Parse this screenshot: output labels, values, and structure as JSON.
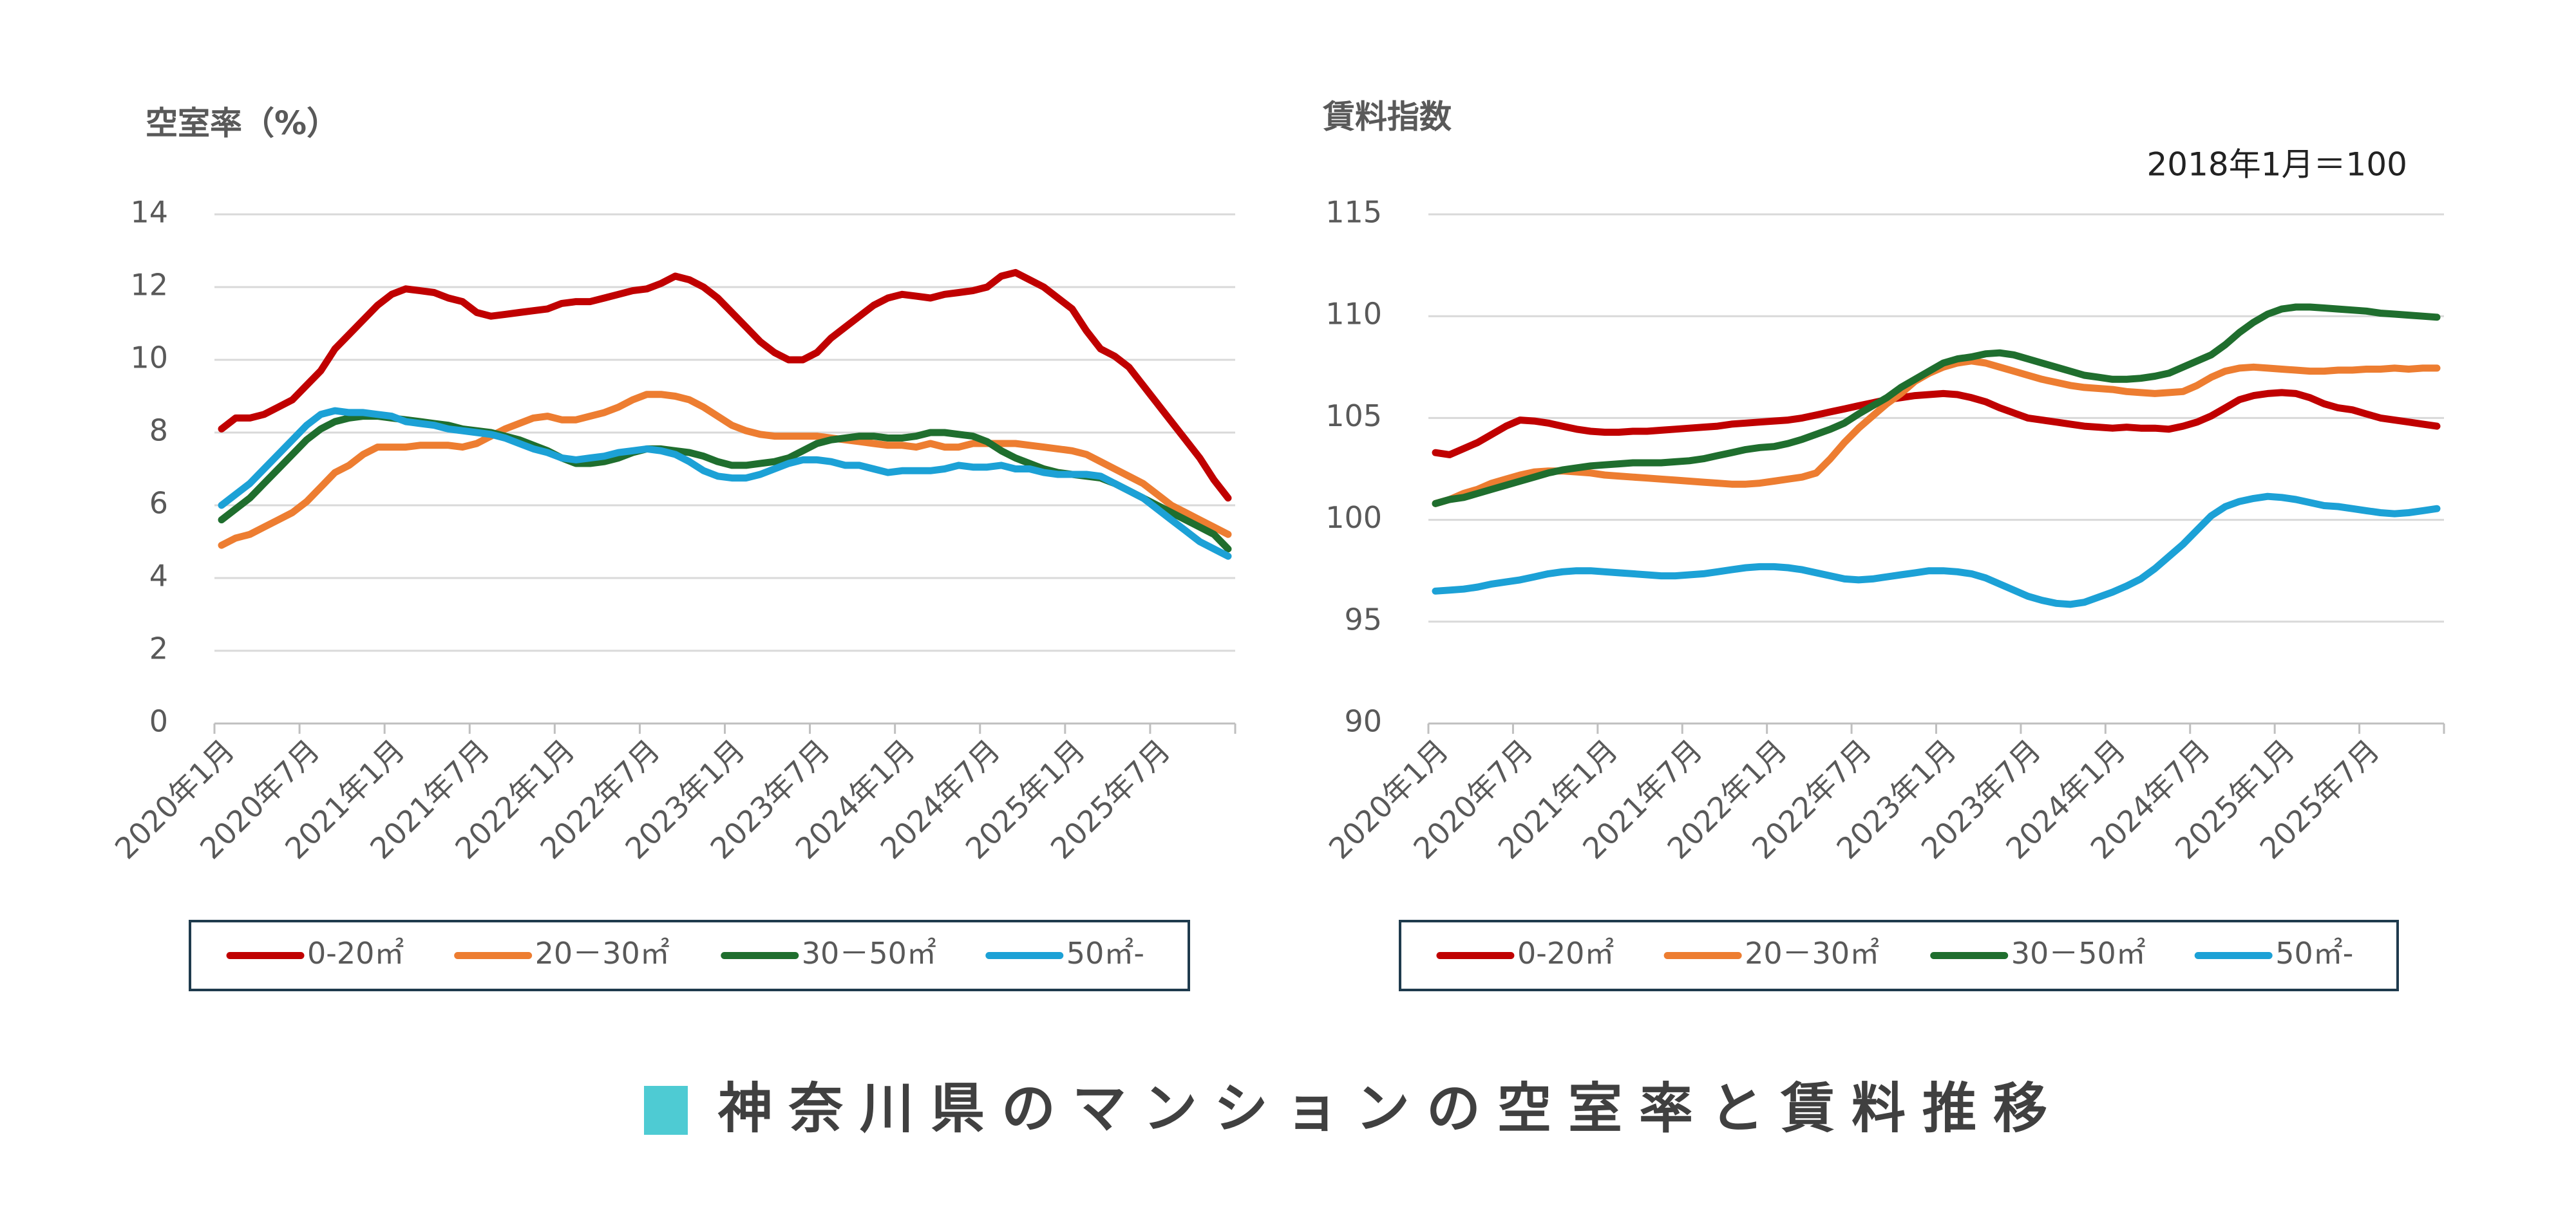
{
  "chart_data": [
    {
      "type": "line",
      "y_label": "空室率（%）",
      "categories": [
        "2020年1月",
        null,
        null,
        null,
        null,
        null,
        "2020年7月",
        null,
        null,
        null,
        null,
        null,
        "2021年1月",
        null,
        null,
        null,
        null,
        null,
        "2021年7月",
        null,
        null,
        null,
        null,
        null,
        "2022年1月",
        null,
        null,
        null,
        null,
        null,
        "2022年7月",
        null,
        null,
        null,
        null,
        null,
        "2023年1月",
        null,
        null,
        null,
        null,
        null,
        "2023年7月",
        null,
        null,
        null,
        null,
        null,
        "2024年1月",
        null,
        null,
        null,
        null,
        null,
        "2024年7月",
        null,
        null,
        null,
        null,
        null,
        "2025年1月",
        null,
        null,
        null,
        null,
        null,
        "2025年7月",
        null,
        null,
        null,
        null,
        null
      ],
      "ylim": [
        0,
        14
      ],
      "yticks": [
        0,
        2,
        4,
        6,
        8,
        10,
        12,
        14
      ],
      "grid": true,
      "legend": "bottom",
      "series": [
        {
          "name": "0-20㎡",
          "color": "#c00000",
          "values": [
            8.1,
            8.4,
            8.4,
            8.5,
            8.7,
            8.9,
            9.3,
            9.7,
            10.3,
            10.7,
            11.1,
            11.5,
            11.8,
            11.95,
            11.9,
            11.85,
            11.7,
            11.6,
            11.3,
            11.2,
            11.25,
            11.3,
            11.35,
            11.4,
            11.55,
            11.6,
            11.6,
            11.7,
            11.8,
            11.9,
            11.95,
            12.1,
            12.3,
            12.2,
            12.0,
            11.7,
            11.3,
            10.9,
            10.5,
            10.2,
            10.0,
            10.0,
            10.2,
            10.6,
            10.9,
            11.2,
            11.5,
            11.7,
            11.8,
            11.75,
            11.7,
            11.8,
            11.85,
            11.9,
            12.0,
            12.3,
            12.4,
            12.2,
            12.0,
            11.7,
            11.4,
            10.8,
            10.3,
            10.1,
            9.8,
            9.3,
            8.8,
            8.3,
            7.8,
            7.3,
            6.7,
            6.2
          ]
        },
        {
          "name": "20－30㎡",
          "color": "#ed7d31",
          "values": [
            4.9,
            5.1,
            5.2,
            5.4,
            5.6,
            5.8,
            6.1,
            6.5,
            6.9,
            7.1,
            7.4,
            7.6,
            7.6,
            7.6,
            7.65,
            7.65,
            7.65,
            7.6,
            7.7,
            7.9,
            8.1,
            8.25,
            8.4,
            8.45,
            8.35,
            8.35,
            8.45,
            8.55,
            8.7,
            8.9,
            9.05,
            9.05,
            9.0,
            8.9,
            8.7,
            8.45,
            8.2,
            8.05,
            7.95,
            7.9,
            7.9,
            7.9,
            7.9,
            7.85,
            7.8,
            7.75,
            7.7,
            7.65,
            7.65,
            7.6,
            7.7,
            7.6,
            7.6,
            7.7,
            7.7,
            7.7,
            7.7,
            7.65,
            7.6,
            7.55,
            7.5,
            7.4,
            7.2,
            7.0,
            6.8,
            6.6,
            6.3,
            6.0,
            5.8,
            5.6,
            5.4,
            5.2
          ]
        },
        {
          "name": "30－50㎡",
          "color": "#1f6e2e",
          "values": [
            5.6,
            5.9,
            6.2,
            6.6,
            7.0,
            7.4,
            7.8,
            8.1,
            8.3,
            8.4,
            8.45,
            8.45,
            8.4,
            8.35,
            8.3,
            8.25,
            8.2,
            8.1,
            8.05,
            8.0,
            7.9,
            7.8,
            7.65,
            7.5,
            7.3,
            7.15,
            7.15,
            7.2,
            7.3,
            7.45,
            7.55,
            7.55,
            7.5,
            7.45,
            7.35,
            7.2,
            7.1,
            7.1,
            7.15,
            7.2,
            7.3,
            7.5,
            7.7,
            7.8,
            7.85,
            7.9,
            7.9,
            7.85,
            7.85,
            7.9,
            8.0,
            8.0,
            7.95,
            7.9,
            7.75,
            7.5,
            7.3,
            7.15,
            7.0,
            6.9,
            6.85,
            6.8,
            6.75,
            6.6,
            6.4,
            6.2,
            6.0,
            5.8,
            5.6,
            5.4,
            5.2,
            4.8
          ]
        },
        {
          "name": "50㎡-",
          "color": "#1ca1d6",
          "values": [
            6.0,
            6.3,
            6.6,
            7.0,
            7.4,
            7.8,
            8.2,
            8.5,
            8.6,
            8.55,
            8.55,
            8.5,
            8.45,
            8.3,
            8.25,
            8.2,
            8.1,
            8.05,
            8.0,
            7.95,
            7.85,
            7.7,
            7.55,
            7.45,
            7.3,
            7.25,
            7.3,
            7.35,
            7.45,
            7.5,
            7.55,
            7.5,
            7.4,
            7.2,
            6.95,
            6.8,
            6.75,
            6.75,
            6.85,
            7.0,
            7.15,
            7.25,
            7.25,
            7.2,
            7.1,
            7.1,
            7.0,
            6.9,
            6.95,
            6.95,
            6.95,
            7.0,
            7.1,
            7.05,
            7.05,
            7.1,
            7.0,
            7.0,
            6.9,
            6.85,
            6.85,
            6.85,
            6.8,
            6.6,
            6.4,
            6.2,
            5.9,
            5.6,
            5.3,
            5.0,
            4.8,
            4.6
          ]
        }
      ]
    },
    {
      "type": "line",
      "y_label": "賃料指数",
      "annotation": "2018年1月＝100",
      "categories": [
        "2020年1月",
        null,
        null,
        null,
        null,
        null,
        "2020年7月",
        null,
        null,
        null,
        null,
        null,
        "2021年1月",
        null,
        null,
        null,
        null,
        null,
        "2021年7月",
        null,
        null,
        null,
        null,
        null,
        "2022年1月",
        null,
        null,
        null,
        null,
        null,
        "2022年7月",
        null,
        null,
        null,
        null,
        null,
        "2023年1月",
        null,
        null,
        null,
        null,
        null,
        "2023年7月",
        null,
        null,
        null,
        null,
        null,
        "2024年1月",
        null,
        null,
        null,
        null,
        null,
        "2024年7月",
        null,
        null,
        null,
        null,
        null,
        "2025年1月",
        null,
        null,
        null,
        null,
        null,
        "2025年7月",
        null,
        null,
        null,
        null,
        null
      ],
      "ylim": [
        90,
        115
      ],
      "yticks": [
        90,
        95,
        100,
        105,
        110,
        115
      ],
      "grid": true,
      "legend": "bottom",
      "series": [
        {
          "name": "0-20㎡",
          "color": "#c00000",
          "values": [
            103.3,
            103.2,
            103.5,
            103.8,
            104.2,
            104.6,
            104.9,
            104.85,
            104.75,
            104.6,
            104.45,
            104.35,
            104.3,
            104.3,
            104.35,
            104.35,
            104.4,
            104.45,
            104.5,
            104.55,
            104.6,
            104.7,
            104.75,
            104.8,
            104.85,
            104.9,
            105.0,
            105.15,
            105.3,
            105.45,
            105.6,
            105.75,
            105.9,
            106.0,
            106.1,
            106.15,
            106.2,
            106.15,
            106.0,
            105.8,
            105.5,
            105.25,
            105.0,
            104.9,
            104.8,
            104.7,
            104.6,
            104.55,
            104.5,
            104.55,
            104.5,
            104.5,
            104.45,
            104.6,
            104.8,
            105.1,
            105.5,
            105.9,
            106.1,
            106.2,
            106.25,
            106.2,
            106.0,
            105.7,
            105.5,
            105.4,
            105.2,
            105.0,
            104.9,
            104.8,
            104.7,
            104.6
          ]
        },
        {
          "name": "20－30㎡",
          "color": "#ed7d31",
          "values": [
            100.8,
            101.0,
            101.3,
            101.5,
            101.8,
            102.0,
            102.2,
            102.35,
            102.4,
            102.4,
            102.35,
            102.3,
            102.2,
            102.15,
            102.1,
            102.05,
            102.0,
            101.95,
            101.9,
            101.85,
            101.8,
            101.75,
            101.75,
            101.8,
            101.9,
            102.0,
            102.1,
            102.3,
            103.0,
            103.8,
            104.5,
            105.1,
            105.7,
            106.2,
            106.8,
            107.2,
            107.5,
            107.7,
            107.8,
            107.7,
            107.5,
            107.3,
            107.1,
            106.9,
            106.75,
            106.6,
            106.5,
            106.45,
            106.4,
            106.3,
            106.25,
            106.2,
            106.25,
            106.3,
            106.6,
            107.0,
            107.3,
            107.45,
            107.5,
            107.45,
            107.4,
            107.35,
            107.3,
            107.3,
            107.35,
            107.35,
            107.4,
            107.4,
            107.45,
            107.4,
            107.45,
            107.45
          ]
        },
        {
          "name": "30－50㎡",
          "color": "#1f6e2e",
          "values": [
            100.8,
            101.0,
            101.1,
            101.3,
            101.5,
            101.7,
            101.9,
            102.1,
            102.3,
            102.45,
            102.55,
            102.65,
            102.7,
            102.75,
            102.8,
            102.8,
            102.8,
            102.85,
            102.9,
            103.0,
            103.15,
            103.3,
            103.45,
            103.55,
            103.6,
            103.75,
            103.95,
            104.2,
            104.45,
            104.75,
            105.2,
            105.6,
            106.0,
            106.5,
            106.9,
            107.3,
            107.7,
            107.9,
            108.0,
            108.15,
            108.2,
            108.1,
            107.9,
            107.7,
            107.5,
            107.3,
            107.1,
            107.0,
            106.9,
            106.9,
            106.95,
            107.05,
            107.2,
            107.5,
            107.8,
            108.1,
            108.6,
            109.2,
            109.7,
            110.1,
            110.35,
            110.45,
            110.45,
            110.4,
            110.35,
            110.3,
            110.25,
            110.15,
            110.1,
            110.05,
            110.0,
            109.95
          ]
        },
        {
          "name": "50㎡-",
          "color": "#1ca1d6",
          "values": [
            96.5,
            96.55,
            96.6,
            96.7,
            96.85,
            96.95,
            97.05,
            97.2,
            97.35,
            97.45,
            97.5,
            97.5,
            97.45,
            97.4,
            97.35,
            97.3,
            97.25,
            97.25,
            97.3,
            97.35,
            97.45,
            97.55,
            97.65,
            97.7,
            97.7,
            97.65,
            97.55,
            97.4,
            97.25,
            97.1,
            97.05,
            97.1,
            97.2,
            97.3,
            97.4,
            97.5,
            97.5,
            97.45,
            97.35,
            97.15,
            96.85,
            96.55,
            96.25,
            96.05,
            95.9,
            95.85,
            95.95,
            96.2,
            96.45,
            96.75,
            97.1,
            97.6,
            98.2,
            98.8,
            99.5,
            100.2,
            100.65,
            100.9,
            101.05,
            101.15,
            101.1,
            101.0,
            100.85,
            100.7,
            100.65,
            100.55,
            100.45,
            100.35,
            100.3,
            100.35,
            100.45,
            100.55
          ]
        }
      ]
    }
  ],
  "page_title": "神奈川県のマンションの空室率と賃料推移"
}
